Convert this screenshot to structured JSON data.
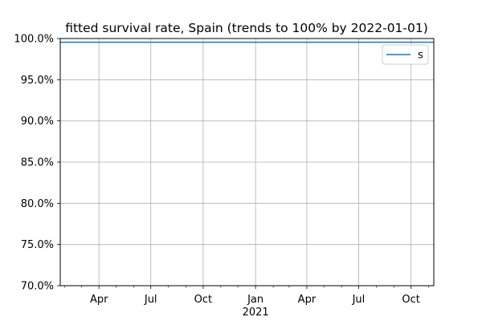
{
  "chart_data": {
    "type": "line",
    "title": "fitted survival rate, Spain (trends to 100% by 2022-01-01)",
    "xlabel": "",
    "ylabel": "",
    "x_range": [
      "2020-01-24",
      "2021-11-10"
    ],
    "ylim": [
      0.7,
      1.0
    ],
    "y_ticks": [
      {
        "value": 0.7,
        "label": "70.0%"
      },
      {
        "value": 0.75,
        "label": "75.0%"
      },
      {
        "value": 0.8,
        "label": "80.0%"
      },
      {
        "value": 0.85,
        "label": "85.0%"
      },
      {
        "value": 0.9,
        "label": "90.0%"
      },
      {
        "value": 0.95,
        "label": "95.0%"
      },
      {
        "value": 1.0,
        "label": "100.0%"
      }
    ],
    "x_major_ticks": [
      {
        "date": "2020-04-01",
        "label": "Apr"
      },
      {
        "date": "2020-07-01",
        "label": "Jul"
      },
      {
        "date": "2020-10-01",
        "label": "Oct"
      },
      {
        "date": "2021-01-01",
        "label": "Jan"
      },
      {
        "date": "2021-04-01",
        "label": "Apr"
      },
      {
        "date": "2021-07-01",
        "label": "Jul"
      },
      {
        "date": "2021-10-01",
        "label": "Oct"
      }
    ],
    "x_minor_ticks": [
      "2020-02-01",
      "2020-03-01",
      "2020-05-01",
      "2020-06-01",
      "2020-08-01",
      "2020-09-01",
      "2020-11-01",
      "2020-12-01",
      "2021-02-01",
      "2021-03-01",
      "2021-05-01",
      "2021-06-01",
      "2021-08-01",
      "2021-09-01",
      "2021-11-01"
    ],
    "year_label": "2021",
    "year_label_date": "2021-01-01",
    "grid": true,
    "legend": {
      "position": "top-right",
      "entries": [
        "s"
      ]
    },
    "series": [
      {
        "name": "s",
        "color": "#1f77b4",
        "x": [
          "2020-01-24",
          "2021-11-10"
        ],
        "values": [
          0.9955,
          0.9955
        ]
      }
    ]
  }
}
